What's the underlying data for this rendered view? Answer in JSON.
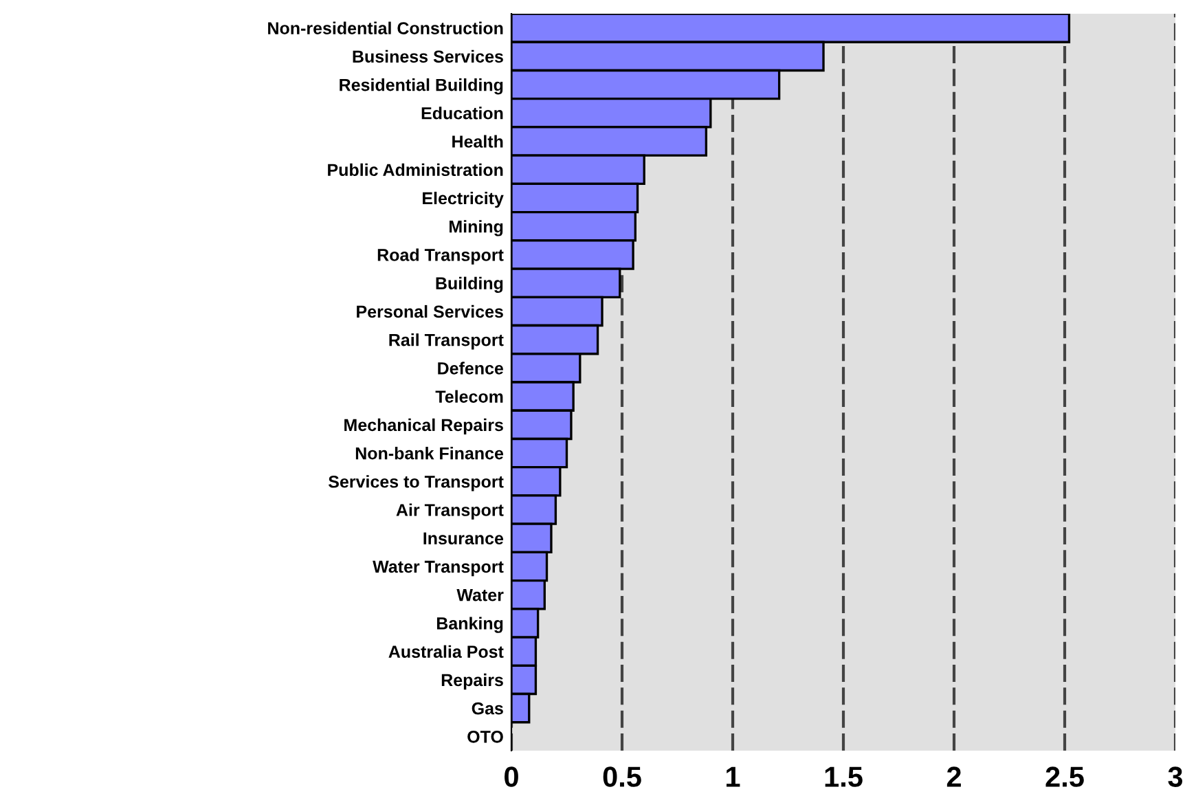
{
  "chart_data": {
    "type": "bar",
    "orientation": "horizontal",
    "categories": [
      "Non-residential Construction",
      "Business Services",
      "Residential Building",
      "Education",
      "Health",
      "Public Administration",
      "Electricity",
      "Mining",
      "Road Transport",
      "Building",
      "Personal Services",
      "Rail Transport",
      "Defence",
      "Telecom",
      "Mechanical Repairs",
      "Non-bank Finance",
      "Services to Transport",
      "Air Transport",
      "Insurance",
      "Water Transport",
      "Water",
      "Banking",
      "Australia Post",
      "Repairs",
      "Gas",
      "OTO"
    ],
    "values": [
      2.52,
      1.41,
      1.21,
      0.9,
      0.88,
      0.6,
      0.57,
      0.56,
      0.55,
      0.49,
      0.41,
      0.39,
      0.31,
      0.28,
      0.27,
      0.25,
      0.22,
      0.2,
      0.18,
      0.16,
      0.15,
      0.12,
      0.11,
      0.11,
      0.08,
      0
    ],
    "color": "#8080ff",
    "xlim": [
      0,
      3
    ],
    "xticks": [
      0,
      0.5,
      1,
      1.5,
      2,
      2.5,
      3
    ],
    "grid": "x"
  }
}
